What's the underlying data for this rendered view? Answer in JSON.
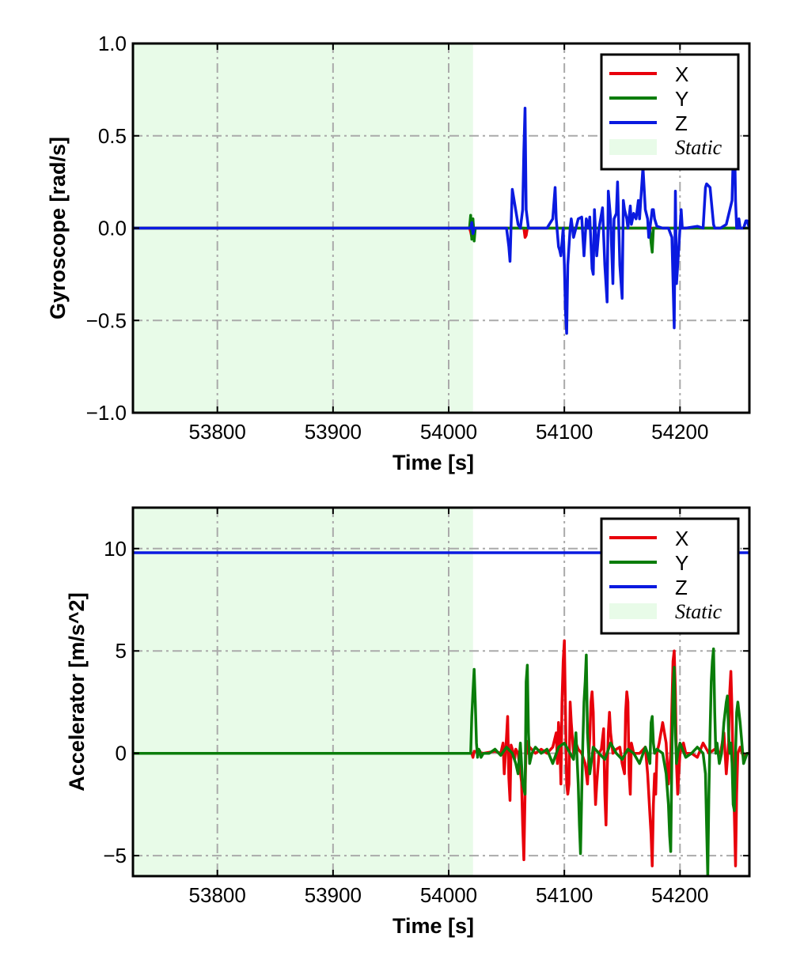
{
  "chart_data": [
    {
      "type": "line",
      "xlabel": "Time [s]",
      "ylabel": "Gyroscope [rad/s]",
      "xlim": [
        53727,
        54260
      ],
      "ylim": [
        -1.0,
        1.0
      ],
      "xticks": [
        53800,
        53900,
        54000,
        54100,
        54200
      ],
      "xtick_labels": [
        "53800",
        "53900",
        "54000",
        "54100",
        "54200"
      ],
      "yticks": [
        1.0,
        0.5,
        0.0,
        -0.5,
        -1.0
      ],
      "ytick_labels": [
        "1.0",
        "0.5",
        "0.0",
        "−0.5",
        "−1.0"
      ],
      "grid": true,
      "legend_position": "top-right",
      "static_region": {
        "label": "Static",
        "x_start": 53727,
        "x_end": 54021,
        "color": "#e8fbe8"
      },
      "series": [
        {
          "name": "X",
          "color": "#e8000b",
          "x": [
            53727,
            54018,
            54019,
            54020,
            54021,
            54022,
            54023,
            54065,
            54066,
            54067,
            54068,
            54145,
            54260
          ],
          "y": [
            0,
            0,
            -0.02,
            -0.05,
            0.03,
            -0.02,
            0,
            0,
            -0.05,
            -0.04,
            0,
            0,
            0
          ]
        },
        {
          "name": "Y",
          "color": "#0a7d0a",
          "x": [
            53727,
            54018,
            54019,
            54020,
            54021,
            54022,
            54023,
            54174,
            54175,
            54176,
            54177,
            54260
          ],
          "y": [
            0,
            0,
            0.07,
            -0.06,
            0.05,
            -0.07,
            0,
            0,
            -0.08,
            -0.13,
            0,
            0
          ]
        },
        {
          "name": "Z",
          "color": "#0a1ae0",
          "x": [
            53727,
            54019,
            54020,
            54021,
            54022,
            54050,
            54052,
            54053,
            54054,
            54055,
            54060,
            54062,
            54064,
            54065,
            54066,
            54067,
            54069,
            54075,
            54085,
            54090,
            54092,
            54093,
            54095,
            54096,
            54097,
            54099,
            54100,
            54101,
            54102,
            54103,
            54105,
            54106,
            54108,
            54110,
            54112,
            54115,
            54117,
            54119,
            54121,
            54122,
            54124,
            54125,
            54126,
            54128,
            54130,
            54133,
            54135,
            54137,
            54138,
            54140,
            54142,
            54143,
            54145,
            54146,
            54148,
            54150,
            54151,
            54152,
            54154,
            54155,
            54157,
            54158,
            54160,
            54162,
            54164,
            54165,
            54168,
            54170,
            54172,
            54173,
            54175,
            54176,
            54177,
            54178,
            54180,
            54185,
            54190,
            54193,
            54195,
            54196,
            54197,
            54198,
            54200,
            54201,
            54202,
            54205,
            54215,
            54220,
            54222,
            54223,
            54226,
            54229,
            54230,
            54232,
            54235,
            54240,
            54245,
            54246,
            54247,
            54248,
            54249,
            54250,
            54251,
            54252,
            54255,
            54257,
            54258,
            54260
          ],
          "y": [
            0,
            0,
            0.03,
            -0.03,
            0,
            0,
            -0.1,
            -0.18,
            0.02,
            0.21,
            0.02,
            0,
            0.1,
            0.42,
            0.65,
            0.1,
            0,
            0,
            0,
            0.05,
            0.22,
            0.05,
            -0.1,
            -0.12,
            -0.15,
            0,
            -0.2,
            -0.45,
            -0.57,
            -0.2,
            0,
            0.05,
            -0.05,
            0,
            0.05,
            0.06,
            -0.15,
            0.05,
            0,
            0.06,
            -0.22,
            -0.25,
            0.1,
            -0.15,
            0,
            0.11,
            -0.2,
            -0.4,
            0.2,
            0.05,
            -0.3,
            0.05,
            0.08,
            0.25,
            -0.2,
            -0.38,
            0.15,
            0.1,
            0.05,
            0,
            0.12,
            0.02,
            0.08,
            0.05,
            0.15,
            0.05,
            0.33,
            0.1,
            0.05,
            -0.05,
            0.05,
            0.1,
            0.1,
            0.05,
            0.01,
            0,
            0,
            -0.05,
            -0.54,
            0.2,
            -0.3,
            -0.2,
            0,
            0.1,
            0,
            0,
            0.01,
            0,
            0.22,
            0.24,
            0.22,
            0.02,
            0,
            0,
            0,
            0.02,
            0.15,
            0.38,
            0.55,
            0.15,
            0,
            0,
            0.05,
            0,
            0,
            0.04,
            0.04,
            0
          ]
        }
      ]
    },
    {
      "type": "line",
      "xlabel": "Time [s]",
      "ylabel": "Accelerator [m/s^2]",
      "xlim": [
        53727,
        54260
      ],
      "ylim": [
        -6,
        12
      ],
      "xticks": [
        53800,
        53900,
        54000,
        54100,
        54200
      ],
      "xtick_labels": [
        "53800",
        "53900",
        "54000",
        "54100",
        "54200"
      ],
      "yticks": [
        10,
        5,
        0,
        -5
      ],
      "ytick_labels": [
        "10",
        "5",
        "0",
        "−5"
      ],
      "grid": true,
      "legend_position": "top-right",
      "static_region": {
        "label": "Static",
        "x_start": 53727,
        "x_end": 54021,
        "color": "#e8fbe8"
      },
      "series": [
        {
          "name": "X",
          "color": "#e8000b",
          "x": [
            53727,
            54020,
            54021,
            54022,
            54030,
            54040,
            54045,
            54047,
            54048,
            54050,
            54051,
            54052,
            54053,
            54054,
            54055,
            54056,
            54057,
            54058,
            54060,
            54063,
            54064,
            54065,
            54066,
            54067,
            54068,
            54070,
            54075,
            54080,
            54085,
            54090,
            54093,
            54094,
            54095,
            54096,
            54097,
            54098,
            54099,
            54100,
            54101,
            54102,
            54103,
            54104,
            54105,
            54106,
            54108,
            54110,
            54112,
            54115,
            54118,
            54120,
            54122,
            54123,
            54124,
            54125,
            54126,
            54127,
            54128,
            54130,
            54132,
            54134,
            54135,
            54136,
            54137,
            54138,
            54139,
            54140,
            54142,
            54145,
            54148,
            54150,
            54152,
            54153,
            54154,
            54155,
            54156,
            54157,
            54158,
            54160,
            54165,
            54170,
            54172,
            54174,
            54175,
            54176,
            54177,
            54178,
            54179,
            54180,
            54182,
            54185,
            54188,
            54190,
            54192,
            54194,
            54195,
            54196,
            54197,
            54198,
            54199,
            54200,
            54203,
            54205,
            54210,
            54215,
            54220,
            54225,
            54230,
            54235,
            54238,
            54240,
            54242,
            54243,
            54244,
            54245,
            54246,
            54247,
            54248,
            54249,
            54250,
            54252,
            54255,
            54258,
            54260
          ],
          "y": [
            0,
            0,
            -0.2,
            0.1,
            0,
            0.1,
            0,
            0.5,
            -1.0,
            0.8,
            1.8,
            -1.2,
            -2.3,
            0.4,
            0.2,
            0,
            -0.3,
            0.2,
            0,
            -1.4,
            -3.5,
            -5.2,
            -2.0,
            0.6,
            0,
            0.3,
            0,
            0.2,
            0,
            0.3,
            1.0,
            -0.5,
            1.5,
            0.8,
            -1.5,
            2.5,
            4.5,
            5.5,
            2.0,
            -1.5,
            -2.0,
            -1.5,
            2.5,
            1.5,
            0,
            0.5,
            0.2,
            0,
            -0.5,
            -1.5,
            0.8,
            2.5,
            3.0,
            2.0,
            -1.0,
            -2.5,
            -1.5,
            0,
            0.2,
            1.2,
            -2.0,
            -3.5,
            -1.0,
            1.0,
            2.0,
            1.0,
            0,
            0.2,
            0.3,
            -0.5,
            -1.0,
            2.0,
            3.0,
            2.5,
            -1.0,
            -2.0,
            0.5,
            0,
            0,
            0.3,
            -1.0,
            -3.0,
            -4.0,
            -5.5,
            -2.5,
            -1.0,
            -2.0,
            0,
            0.5,
            1.5,
            0.5,
            -1.5,
            0,
            4.5,
            5.0,
            3.0,
            -0.5,
            -2.0,
            -1.0,
            0,
            0.5,
            0,
            0,
            -0.2,
            0.5,
            0,
            0.2,
            0,
            1.0,
            -1.0,
            0.5,
            3.0,
            4.0,
            2.0,
            -1.0,
            -3.0,
            -5.5,
            -2.0,
            0,
            0.3,
            -0.2,
            0,
            0
          ]
        },
        {
          "name": "Y",
          "color": "#0a7d0a",
          "x": [
            53727,
            54019,
            54020,
            54021,
            54022,
            54023,
            54024,
            54025,
            54026,
            54027,
            54028,
            54030,
            54035,
            54040,
            54045,
            54050,
            54055,
            54058,
            54060,
            54062,
            54064,
            54066,
            54067,
            54068,
            54069,
            54070,
            54072,
            54075,
            54080,
            54085,
            54090,
            54095,
            54100,
            54105,
            54108,
            54110,
            54112,
            54113,
            54114,
            54115,
            54116,
            54117,
            54118,
            54119,
            54120,
            54122,
            54125,
            54130,
            54135,
            54140,
            54145,
            54150,
            54155,
            54160,
            54165,
            54170,
            54172,
            54174,
            54175,
            54176,
            54177,
            54178,
            54180,
            54185,
            54188,
            54190,
            54191,
            54192,
            54193,
            54194,
            54195,
            54196,
            54197,
            54198,
            54200,
            54205,
            54210,
            54215,
            54220,
            54222,
            54223,
            54224,
            54225,
            54226,
            54227,
            54228,
            54229,
            54230,
            54231,
            54232,
            54234,
            54236,
            54238,
            54240,
            54241,
            54242,
            54243,
            54244,
            54245,
            54246,
            54247,
            54248,
            54249,
            54250,
            54252,
            54255,
            54258,
            54260
          ],
          "y": [
            0,
            0,
            1.8,
            3.0,
            4.1,
            2.5,
            0.5,
            -0.2,
            0.2,
            0.1,
            -0.2,
            0,
            0,
            0.2,
            -0.1,
            0.3,
            0,
            -0.5,
            -1.0,
            0.5,
            -1.5,
            -2.0,
            3.5,
            4.3,
            1.0,
            -0.5,
            0,
            0.3,
            0,
            0.2,
            -0.5,
            0.3,
            0.5,
            0,
            -0.3,
            1.0,
            -1.5,
            -3.5,
            -4.9,
            -2.0,
            0.5,
            2.5,
            3.5,
            4.8,
            1.0,
            -1.0,
            0.3,
            0,
            -0.3,
            0.5,
            0,
            -0.3,
            0.2,
            0,
            -0.5,
            0.3,
            0,
            -0.5,
            1.5,
            1.8,
            0.5,
            0,
            0.2,
            0,
            -1.0,
            -2.5,
            -4.0,
            -4.8,
            0,
            3.0,
            4.2,
            1.0,
            -0.5,
            0,
            0.5,
            -0.2,
            0,
            0.3,
            0,
            -1.0,
            -3.5,
            -6.0,
            -2.0,
            1.0,
            3.5,
            4.5,
            5.1,
            2.0,
            0,
            0.5,
            -0.5,
            0,
            1.5,
            2.5,
            2.8,
            1.0,
            0,
            0.5,
            -0.5,
            -2.5,
            -2.8,
            0,
            2.0,
            2.5,
            1.5,
            -0.5,
            0,
            0
          ]
        },
        {
          "name": "Z",
          "color": "#0a1ae0",
          "x": [
            53727,
            54260
          ],
          "y": [
            9.8,
            9.8
          ]
        }
      ]
    }
  ]
}
